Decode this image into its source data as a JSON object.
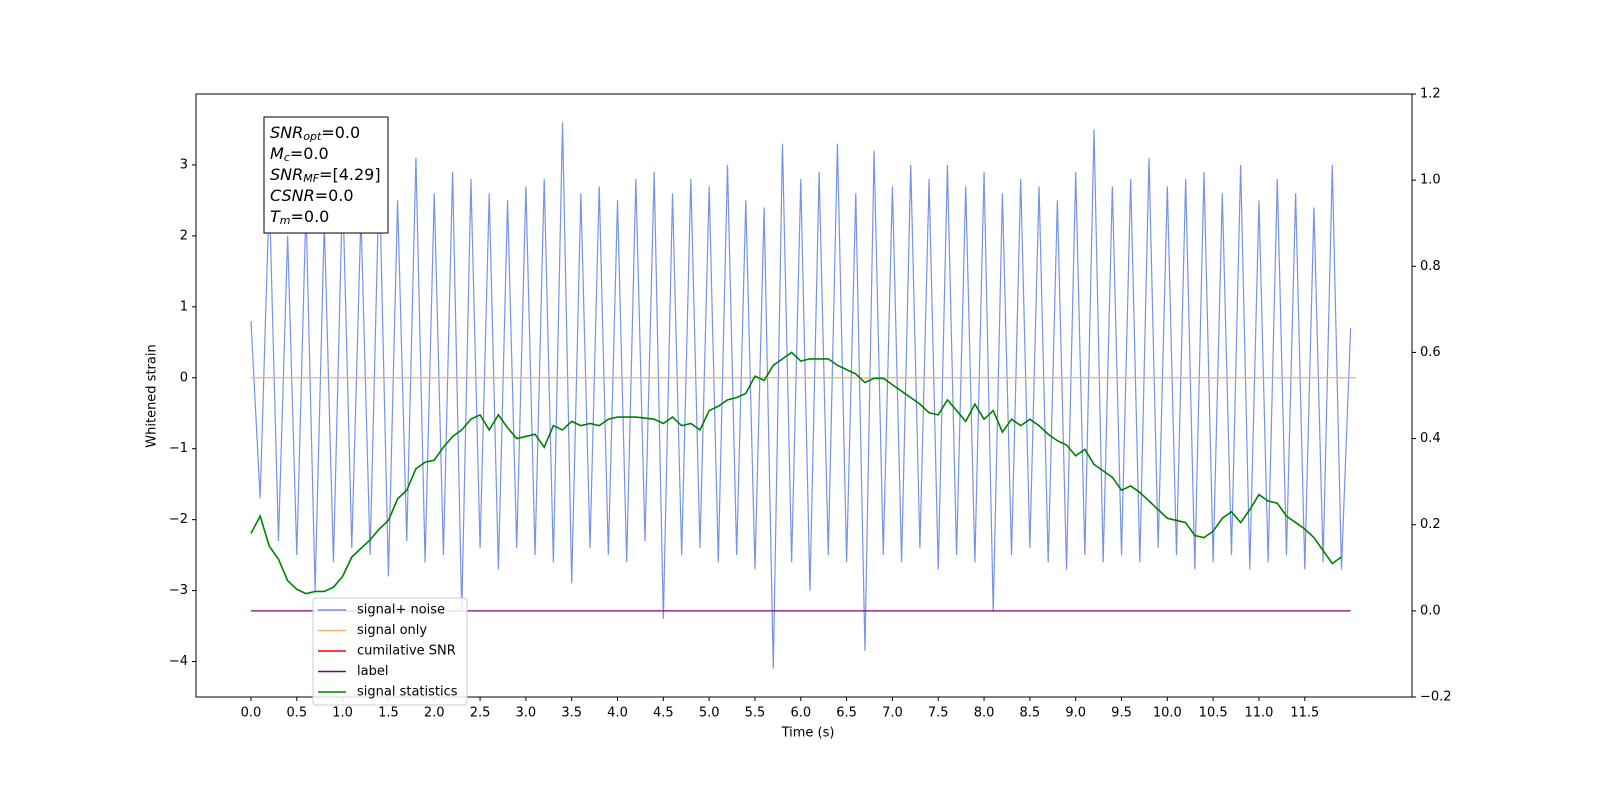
{
  "chart_data": {
    "type": "line",
    "xlabel": "Time (s)",
    "ylabel": "Whitened strain",
    "xlim": [
      -0.6,
      12.67
    ],
    "ylim": [
      -4.5,
      4.0
    ],
    "y2lim": [
      -0.2,
      1.2
    ],
    "xticks": [
      {
        "value": 0,
        "label": "0.0"
      },
      0.5,
      {
        "value": 1,
        "label": "1.0"
      },
      1.5,
      {
        "value": 2,
        "label": "2.0"
      },
      2.5,
      {
        "value": 3,
        "label": "3.0"
      },
      3.5,
      {
        "value": 4,
        "label": "4.0"
      },
      4.5,
      {
        "value": 5,
        "label": "5.0"
      },
      5.5,
      {
        "value": 6,
        "label": "6.0"
      },
      6.5,
      {
        "value": 7,
        "label": "7.0"
      },
      7.5,
      {
        "value": 8,
        "label": "8.0"
      },
      8.5,
      {
        "value": 9,
        "label": "9.0"
      },
      9.5,
      {
        "value": 10,
        "label": "10.0"
      },
      10.5,
      {
        "value": 11,
        "label": "11.0"
      },
      11.5
    ],
    "yticks": [
      {
        "value": -4,
        "label": "−4"
      },
      {
        "value": -3,
        "label": "−3"
      },
      {
        "value": -2,
        "label": "−2"
      },
      {
        "value": -1,
        "label": "−1"
      },
      0,
      1,
      2,
      3
    ],
    "y2ticks": [
      {
        "value": -0.2,
        "label": "−0.2"
      },
      {
        "value": 0,
        "label": "0.0"
      },
      0.2,
      0.4,
      0.6,
      0.8,
      {
        "value": 1,
        "label": "1.0"
      },
      1.2
    ],
    "series": [
      {
        "name": "signal+ noise",
        "color": "#7893e6",
        "x": [
          0,
          0.1,
          0.2,
          0.3,
          0.4,
          0.5,
          0.6,
          0.7,
          0.8,
          0.9,
          1.0,
          1.1,
          1.2,
          1.3,
          1.4,
          1.5,
          1.6,
          1.7,
          1.8,
          1.9,
          2.0,
          2.1,
          2.2,
          2.3,
          2.4,
          2.5,
          2.6,
          2.7,
          2.8,
          2.9,
          3.0,
          3.1,
          3.2,
          3.3,
          3.4,
          3.5,
          3.6,
          3.7,
          3.8,
          3.9,
          4.0,
          4.1,
          4.2,
          4.3,
          4.4,
          4.5,
          4.6,
          4.7,
          4.8,
          4.9,
          5.0,
          5.1,
          5.2,
          5.3,
          5.4,
          5.5,
          5.6,
          5.7,
          5.8,
          5.9,
          6.0,
          6.1,
          6.2,
          6.3,
          6.4,
          6.5,
          6.6,
          6.7,
          6.8,
          6.9,
          7.0,
          7.1,
          7.2,
          7.3,
          7.4,
          7.5,
          7.6,
          7.7,
          7.8,
          7.9,
          8.0,
          8.1,
          8.2,
          8.3,
          8.4,
          8.5,
          8.6,
          8.7,
          8.8,
          8.9,
          9.0,
          9.1,
          9.2,
          9.3,
          9.4,
          9.5,
          9.6,
          9.7,
          9.8,
          9.9,
          10.0,
          10.1,
          10.2,
          10.3,
          10.4,
          10.5,
          10.6,
          10.7,
          10.8,
          10.9,
          11.0,
          11.1,
          11.2,
          11.3,
          11.4,
          11.5,
          11.6,
          11.7,
          11.8,
          11.9,
          12.0
        ],
        "values": [
          0.8,
          -1.7,
          2.6,
          -2.3,
          2.0,
          -2.5,
          2.4,
          -3.0,
          2.2,
          -2.6,
          2.7,
          -2.4,
          2.3,
          -2.5,
          2.9,
          -2.8,
          2.5,
          -2.3,
          3.1,
          -2.6,
          2.6,
          -2.5,
          2.9,
          -3.3,
          2.8,
          -2.4,
          2.6,
          -2.7,
          2.5,
          -2.4,
          2.7,
          -2.5,
          2.8,
          -2.6,
          3.6,
          -2.9,
          2.6,
          -2.4,
          2.7,
          -2.5,
          2.5,
          -2.6,
          2.8,
          -2.3,
          2.9,
          -3.4,
          2.6,
          -2.5,
          2.8,
          -2.4,
          2.7,
          -2.6,
          3.0,
          -2.5,
          2.5,
          -2.7,
          2.4,
          -4.1,
          3.3,
          -2.6,
          2.8,
          -3.0,
          2.9,
          -2.5,
          3.3,
          -2.6,
          2.6,
          -3.85,
          3.2,
          -2.5,
          2.7,
          -2.6,
          3.0,
          -2.4,
          2.8,
          -2.7,
          3.0,
          -2.5,
          2.7,
          -2.6,
          2.9,
          -3.3,
          2.6,
          -2.5,
          2.8,
          -2.4,
          2.7,
          -2.6,
          2.5,
          -2.7,
          2.9,
          -2.5,
          3.5,
          -2.6,
          2.7,
          -2.5,
          2.8,
          -2.6,
          3.1,
          -2.4,
          2.7,
          -2.5,
          2.8,
          -2.7,
          2.9,
          -2.6,
          2.6,
          -2.5,
          3.0,
          -2.7,
          2.5,
          -2.6,
          2.8,
          -2.5,
          2.6,
          -2.7,
          2.4,
          -2.6,
          3.0,
          -2.7,
          0.7
        ]
      },
      {
        "name": "signal only",
        "color": "#f2b26c",
        "x": [
          0,
          12.06
        ],
        "values": [
          0,
          0
        ]
      },
      {
        "name": "cumilative SNR",
        "color": "#ff0000"
      },
      {
        "name": "label",
        "color": "#800080",
        "axis": "y2",
        "x": [
          0,
          12.0
        ],
        "values": [
          0,
          0
        ]
      },
      {
        "name": "signal statistics",
        "color": "#008000",
        "axis": "y2",
        "x": [
          0,
          0.1,
          0.2,
          0.3,
          0.4,
          0.5,
          0.6,
          0.7,
          0.8,
          0.9,
          1.0,
          1.1,
          1.2,
          1.3,
          1.4,
          1.5,
          1.6,
          1.7,
          1.8,
          1.9,
          2.0,
          2.1,
          2.2,
          2.3,
          2.4,
          2.5,
          2.6,
          2.7,
          2.8,
          2.9,
          3.0,
          3.1,
          3.2,
          3.3,
          3.4,
          3.5,
          3.6,
          3.7,
          3.8,
          3.9,
          4.0,
          4.2,
          4.4,
          4.5,
          4.6,
          4.7,
          4.8,
          4.9,
          5.0,
          5.1,
          5.2,
          5.3,
          5.4,
          5.5,
          5.6,
          5.7,
          5.8,
          5.9,
          6.0,
          6.1,
          6.2,
          6.3,
          6.4,
          6.5,
          6.6,
          6.7,
          6.8,
          6.9,
          7.0,
          7.1,
          7.2,
          7.3,
          7.4,
          7.5,
          7.6,
          7.7,
          7.8,
          7.9,
          8.0,
          8.1,
          8.2,
          8.3,
          8.4,
          8.5,
          8.6,
          8.7,
          8.8,
          8.9,
          9.0,
          9.1,
          9.2,
          9.3,
          9.4,
          9.5,
          9.6,
          9.7,
          9.8,
          9.9,
          10.0,
          10.1,
          10.2,
          10.3,
          10.4,
          10.5,
          10.6,
          10.7,
          10.8,
          10.9,
          11.0,
          11.1,
          11.2,
          11.3,
          11.4,
          11.5,
          11.6,
          11.7,
          11.8,
          11.9
        ],
        "values": [
          0.18,
          0.22,
          0.15,
          0.12,
          0.07,
          0.05,
          0.04,
          0.045,
          0.045,
          0.055,
          0.08,
          0.125,
          0.145,
          0.165,
          0.19,
          0.21,
          0.26,
          0.28,
          0.33,
          0.345,
          0.35,
          0.38,
          0.405,
          0.42,
          0.445,
          0.455,
          0.42,
          0.455,
          0.425,
          0.4,
          0.405,
          0.41,
          0.38,
          0.43,
          0.42,
          0.44,
          0.43,
          0.435,
          0.43,
          0.445,
          0.45,
          0.45,
          0.445,
          0.435,
          0.45,
          0.43,
          0.435,
          0.42,
          0.465,
          0.475,
          0.49,
          0.495,
          0.505,
          0.545,
          0.535,
          0.57,
          0.585,
          0.6,
          0.58,
          0.585,
          0.585,
          0.585,
          0.57,
          0.56,
          0.55,
          0.53,
          0.54,
          0.54,
          0.525,
          0.51,
          0.495,
          0.48,
          0.46,
          0.455,
          0.49,
          0.465,
          0.44,
          0.48,
          0.445,
          0.465,
          0.415,
          0.445,
          0.43,
          0.445,
          0.43,
          0.41,
          0.395,
          0.385,
          0.36,
          0.375,
          0.34,
          0.325,
          0.31,
          0.28,
          0.29,
          0.275,
          0.255,
          0.235,
          0.215,
          0.21,
          0.205,
          0.175,
          0.17,
          0.185,
          0.215,
          0.23,
          0.205,
          0.235,
          0.27,
          0.255,
          0.25,
          0.22,
          0.205,
          0.19,
          0.17,
          0.14,
          0.11,
          0.125
        ]
      }
    ],
    "annotations": [
      {
        "text": "SNR",
        "sub": "opt",
        "rest": "=0.0"
      },
      {
        "text": "M",
        "sub": "c",
        "rest": "=0.0"
      },
      {
        "text": "SNR",
        "sub": "MF",
        "rest": "=[4.29]"
      },
      {
        "text": "CSNR",
        "rest": "=0.0"
      },
      {
        "text": "T",
        "sub": "m",
        "rest": "=0.0"
      }
    ]
  }
}
